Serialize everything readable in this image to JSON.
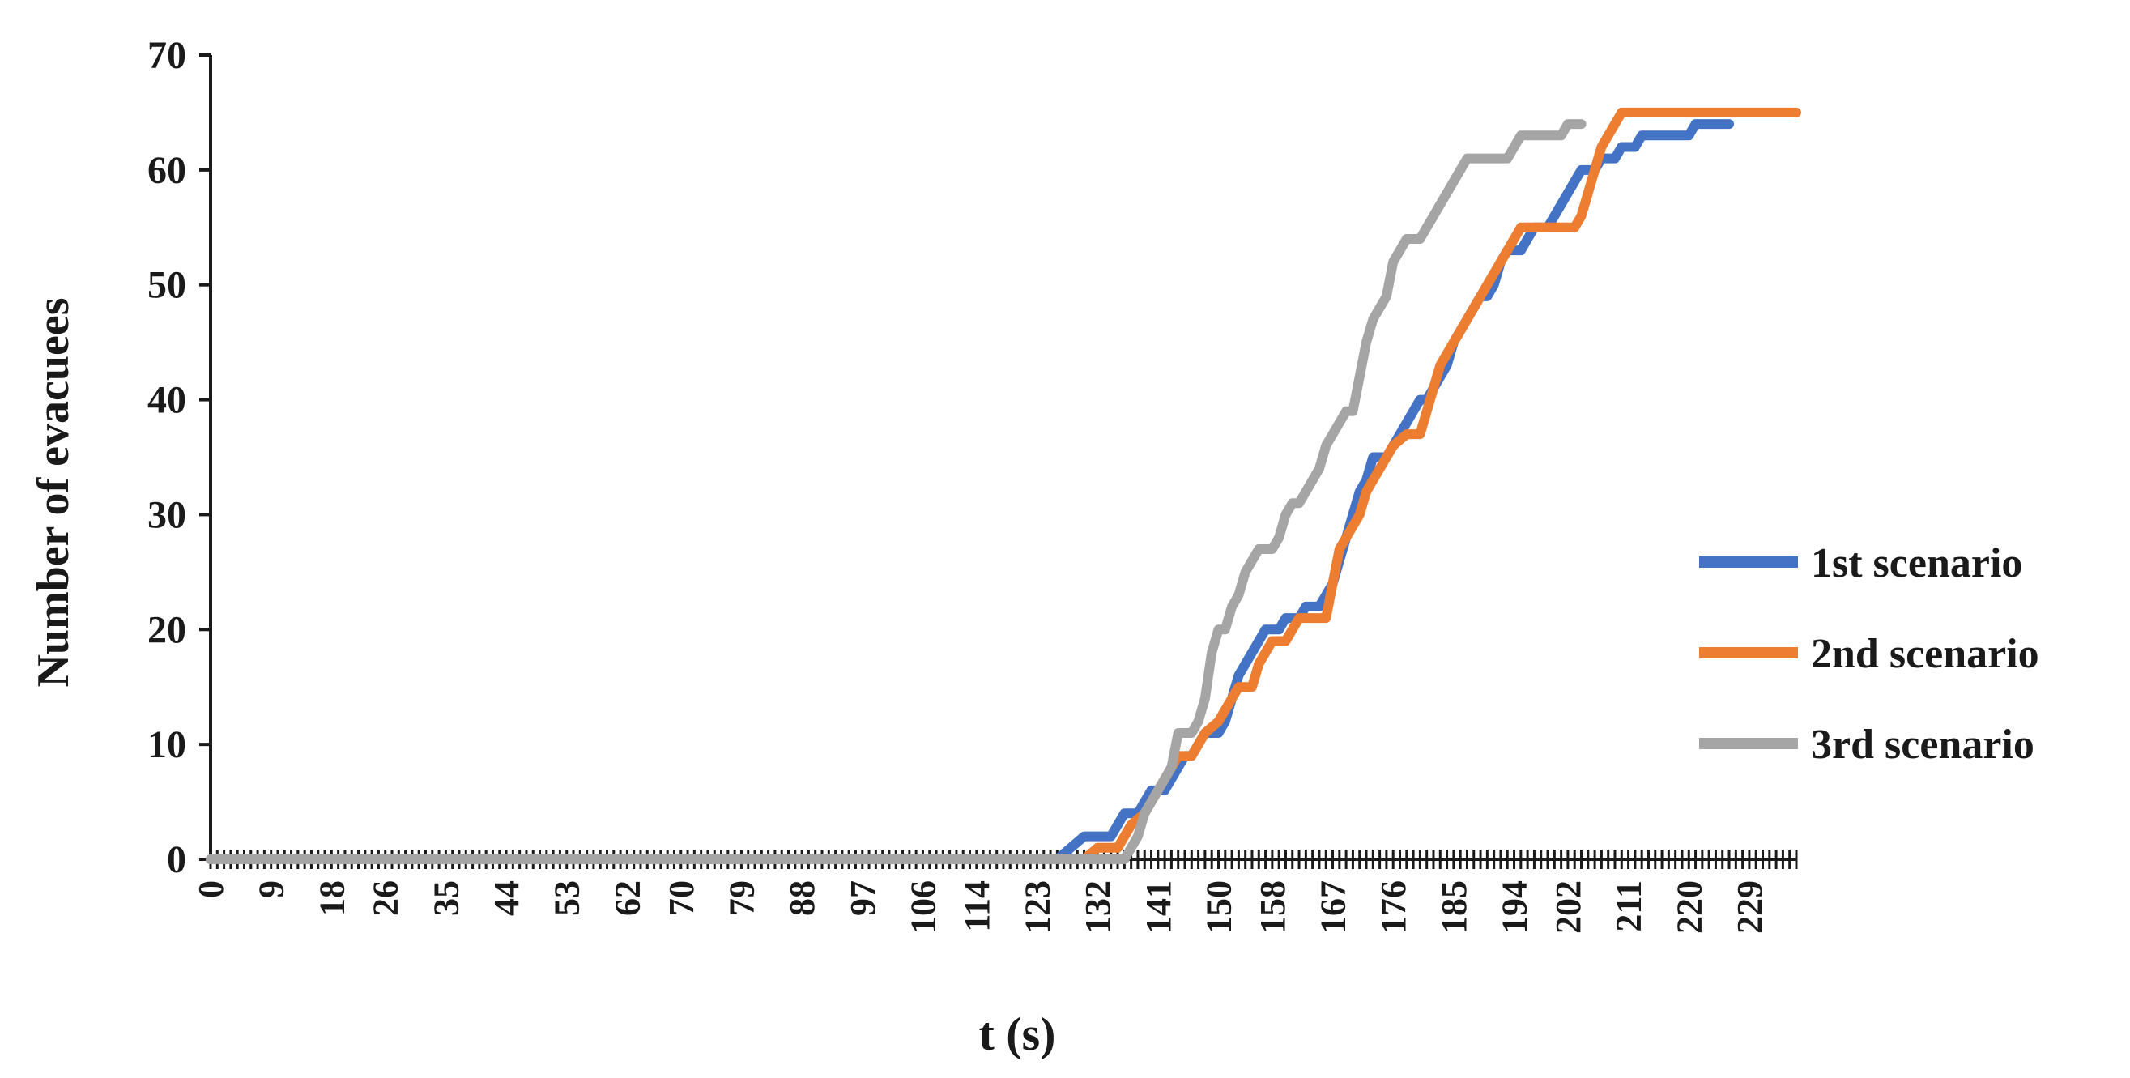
{
  "chart_data": {
    "type": "line",
    "title": "",
    "xlabel": "t (s)",
    "ylabel": "Number of evacuees",
    "xlim": [
      0,
      236
    ],
    "ylim": [
      0,
      70
    ],
    "y_ticks": [
      0,
      10,
      20,
      30,
      40,
      50,
      60,
      70
    ],
    "x_tick_labels": [
      0,
      9,
      18,
      26,
      35,
      44,
      53,
      62,
      70,
      79,
      88,
      97,
      106,
      114,
      123,
      132,
      141,
      150,
      158,
      167,
      176,
      185,
      194,
      202,
      211,
      220,
      229
    ],
    "grid": false,
    "legend_position": "right",
    "series": [
      {
        "name": "1st scenario",
        "color": "#4472C4",
        "points": [
          [
            0,
            0
          ],
          [
            126,
            0
          ],
          [
            128,
            1
          ],
          [
            130,
            2
          ],
          [
            134,
            2
          ],
          [
            135,
            3
          ],
          [
            136,
            4
          ],
          [
            138,
            4
          ],
          [
            139,
            5
          ],
          [
            140,
            6
          ],
          [
            142,
            6
          ],
          [
            143,
            7
          ],
          [
            144,
            8
          ],
          [
            145,
            9
          ],
          [
            146,
            9
          ],
          [
            147,
            10
          ],
          [
            148,
            11
          ],
          [
            150,
            11
          ],
          [
            151,
            12
          ],
          [
            152,
            14
          ],
          [
            153,
            16
          ],
          [
            154,
            17
          ],
          [
            155,
            18
          ],
          [
            156,
            19
          ],
          [
            157,
            20
          ],
          [
            159,
            20
          ],
          [
            160,
            21
          ],
          [
            162,
            21
          ],
          [
            163,
            22
          ],
          [
            165,
            22
          ],
          [
            166,
            23
          ],
          [
            167,
            24
          ],
          [
            168,
            26
          ],
          [
            169,
            28
          ],
          [
            170,
            30
          ],
          [
            171,
            32
          ],
          [
            172,
            33
          ],
          [
            173,
            35
          ],
          [
            175,
            35
          ],
          [
            176,
            36
          ],
          [
            177,
            37
          ],
          [
            178,
            38
          ],
          [
            179,
            39
          ],
          [
            180,
            40
          ],
          [
            181,
            40
          ],
          [
            182,
            41
          ],
          [
            183,
            42
          ],
          [
            184,
            43
          ],
          [
            185,
            45
          ],
          [
            186,
            46
          ],
          [
            187,
            47
          ],
          [
            188,
            48
          ],
          [
            189,
            49
          ],
          [
            190,
            49
          ],
          [
            191,
            50
          ],
          [
            192,
            52
          ],
          [
            193,
            53
          ],
          [
            195,
            53
          ],
          [
            196,
            54
          ],
          [
            197,
            55
          ],
          [
            199,
            55
          ],
          [
            200,
            56
          ],
          [
            201,
            57
          ],
          [
            202,
            58
          ],
          [
            203,
            59
          ],
          [
            204,
            60
          ],
          [
            206,
            60
          ],
          [
            207,
            61
          ],
          [
            209,
            61
          ],
          [
            210,
            62
          ],
          [
            212,
            62
          ],
          [
            213,
            63
          ],
          [
            220,
            63
          ],
          [
            221,
            64
          ],
          [
            226,
            64
          ]
        ]
      },
      {
        "name": "2nd scenario",
        "color": "#ED7D31",
        "points": [
          [
            0,
            0
          ],
          [
            130,
            0
          ],
          [
            132,
            1
          ],
          [
            135,
            1
          ],
          [
            136,
            2
          ],
          [
            137,
            3
          ],
          [
            139,
            4
          ],
          [
            140,
            5
          ],
          [
            141,
            6
          ],
          [
            142,
            7
          ],
          [
            143,
            8
          ],
          [
            144,
            9
          ],
          [
            146,
            9
          ],
          [
            147,
            10
          ],
          [
            148,
            11
          ],
          [
            150,
            12
          ],
          [
            151,
            13
          ],
          [
            152,
            14
          ],
          [
            153,
            15
          ],
          [
            155,
            15
          ],
          [
            156,
            17
          ],
          [
            157,
            18
          ],
          [
            158,
            19
          ],
          [
            160,
            19
          ],
          [
            161,
            20
          ],
          [
            162,
            21
          ],
          [
            166,
            21
          ],
          [
            167,
            24
          ],
          [
            168,
            27
          ],
          [
            169,
            28
          ],
          [
            170,
            29
          ],
          [
            171,
            30
          ],
          [
            172,
            32
          ],
          [
            173,
            33
          ],
          [
            174,
            34
          ],
          [
            175,
            35
          ],
          [
            176,
            36
          ],
          [
            178,
            37
          ],
          [
            180,
            37
          ],
          [
            181,
            39
          ],
          [
            182,
            41
          ],
          [
            183,
            43
          ],
          [
            184,
            44
          ],
          [
            185,
            45
          ],
          [
            186,
            46
          ],
          [
            187,
            47
          ],
          [
            188,
            48
          ],
          [
            189,
            49
          ],
          [
            190,
            50
          ],
          [
            191,
            51
          ],
          [
            192,
            52
          ],
          [
            193,
            53
          ],
          [
            194,
            54
          ],
          [
            195,
            55
          ],
          [
            203,
            55
          ],
          [
            204,
            56
          ],
          [
            205,
            58
          ],
          [
            206,
            60
          ],
          [
            207,
            62
          ],
          [
            208,
            63
          ],
          [
            209,
            64
          ],
          [
            210,
            65
          ],
          [
            236,
            65
          ]
        ]
      },
      {
        "name": "3rd scenario",
        "color": "#A5A5A5",
        "points": [
          [
            0,
            0
          ],
          [
            136,
            0
          ],
          [
            137,
            1
          ],
          [
            138,
            2
          ],
          [
            139,
            4
          ],
          [
            140,
            5
          ],
          [
            141,
            6
          ],
          [
            142,
            7
          ],
          [
            143,
            8
          ],
          [
            144,
            11
          ],
          [
            146,
            11
          ],
          [
            147,
            12
          ],
          [
            148,
            14
          ],
          [
            149,
            18
          ],
          [
            150,
            20
          ],
          [
            151,
            20
          ],
          [
            152,
            22
          ],
          [
            153,
            23
          ],
          [
            154,
            25
          ],
          [
            155,
            26
          ],
          [
            156,
            27
          ],
          [
            158,
            27
          ],
          [
            159,
            28
          ],
          [
            160,
            30
          ],
          [
            161,
            31
          ],
          [
            162,
            31
          ],
          [
            163,
            32
          ],
          [
            164,
            33
          ],
          [
            165,
            34
          ],
          [
            166,
            36
          ],
          [
            167,
            37
          ],
          [
            168,
            38
          ],
          [
            169,
            39
          ],
          [
            170,
            39
          ],
          [
            171,
            42
          ],
          [
            172,
            45
          ],
          [
            173,
            47
          ],
          [
            174,
            48
          ],
          [
            175,
            49
          ],
          [
            176,
            52
          ],
          [
            177,
            53
          ],
          [
            178,
            54
          ],
          [
            180,
            54
          ],
          [
            181,
            55
          ],
          [
            182,
            56
          ],
          [
            183,
            57
          ],
          [
            184,
            58
          ],
          [
            185,
            59
          ],
          [
            186,
            60
          ],
          [
            187,
            61
          ],
          [
            193,
            61
          ],
          [
            194,
            62
          ],
          [
            195,
            63
          ],
          [
            201,
            63
          ],
          [
            202,
            64
          ],
          [
            204,
            64
          ]
        ]
      }
    ]
  }
}
